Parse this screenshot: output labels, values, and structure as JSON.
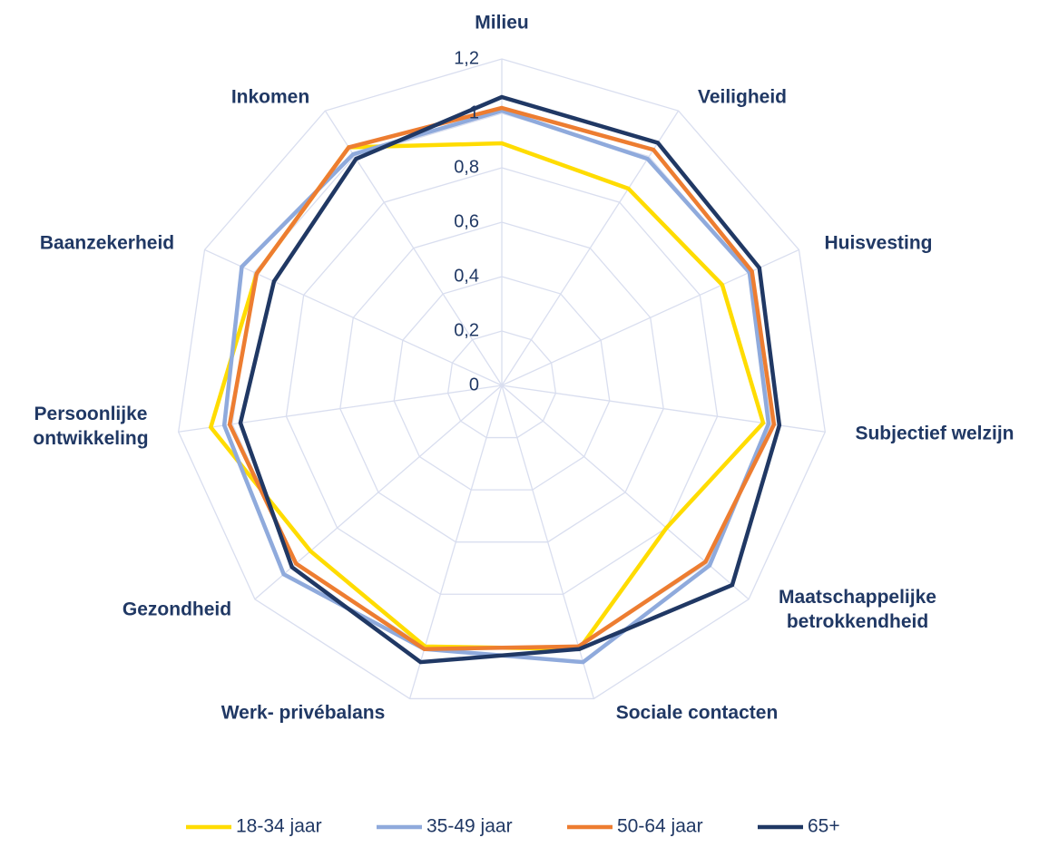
{
  "chart_data": {
    "type": "radar",
    "categories": [
      "Milieu",
      "Veiligheid",
      "Huisvesting",
      "Subjectief welzijn",
      "Maatschappelijke betrokkendheid",
      "Sociale contacten",
      "Werk- privébalans",
      "Gezondheid",
      "Persoonlijke ontwikkeling",
      "Baanzekerheid",
      "Inkomen"
    ],
    "series": [
      {
        "name": "18-34 jaar",
        "color": "#ffdc00",
        "values": [
          0.89,
          0.86,
          0.89,
          0.97,
          0.8,
          1.01,
          1.0,
          0.93,
          1.08,
          0.99,
          1.04
        ]
      },
      {
        "name": "35-49 jaar",
        "color": "#8faadc",
        "values": [
          1.01,
          0.99,
          1.0,
          0.99,
          1.01,
          1.06,
          1.01,
          1.06,
          1.03,
          1.05,
          1.01
        ]
      },
      {
        "name": "50-64 jaar",
        "color": "#ed7d31",
        "values": [
          1.02,
          1.03,
          1.01,
          1.01,
          0.99,
          1.0,
          1.01,
          1.0,
          1.01,
          0.99,
          1.04
        ]
      },
      {
        "name": "65+",
        "color": "#203864",
        "values": [
          1.06,
          1.06,
          1.04,
          1.03,
          1.12,
          1.01,
          1.06,
          1.02,
          0.97,
          0.92,
          0.99
        ]
      }
    ],
    "ylim": [
      0,
      1.2
    ],
    "yticks": [
      0,
      {
        "value": 0.2,
        "label": "0,2"
      },
      {
        "value": 0.4,
        "label": "0,4"
      },
      {
        "value": 0.6,
        "label": "0,6"
      },
      {
        "value": 0.8,
        "label": "0,8"
      },
      1,
      {
        "value": 1.2,
        "label": "1,2"
      }
    ],
    "grid": true,
    "legend": "bottom"
  }
}
